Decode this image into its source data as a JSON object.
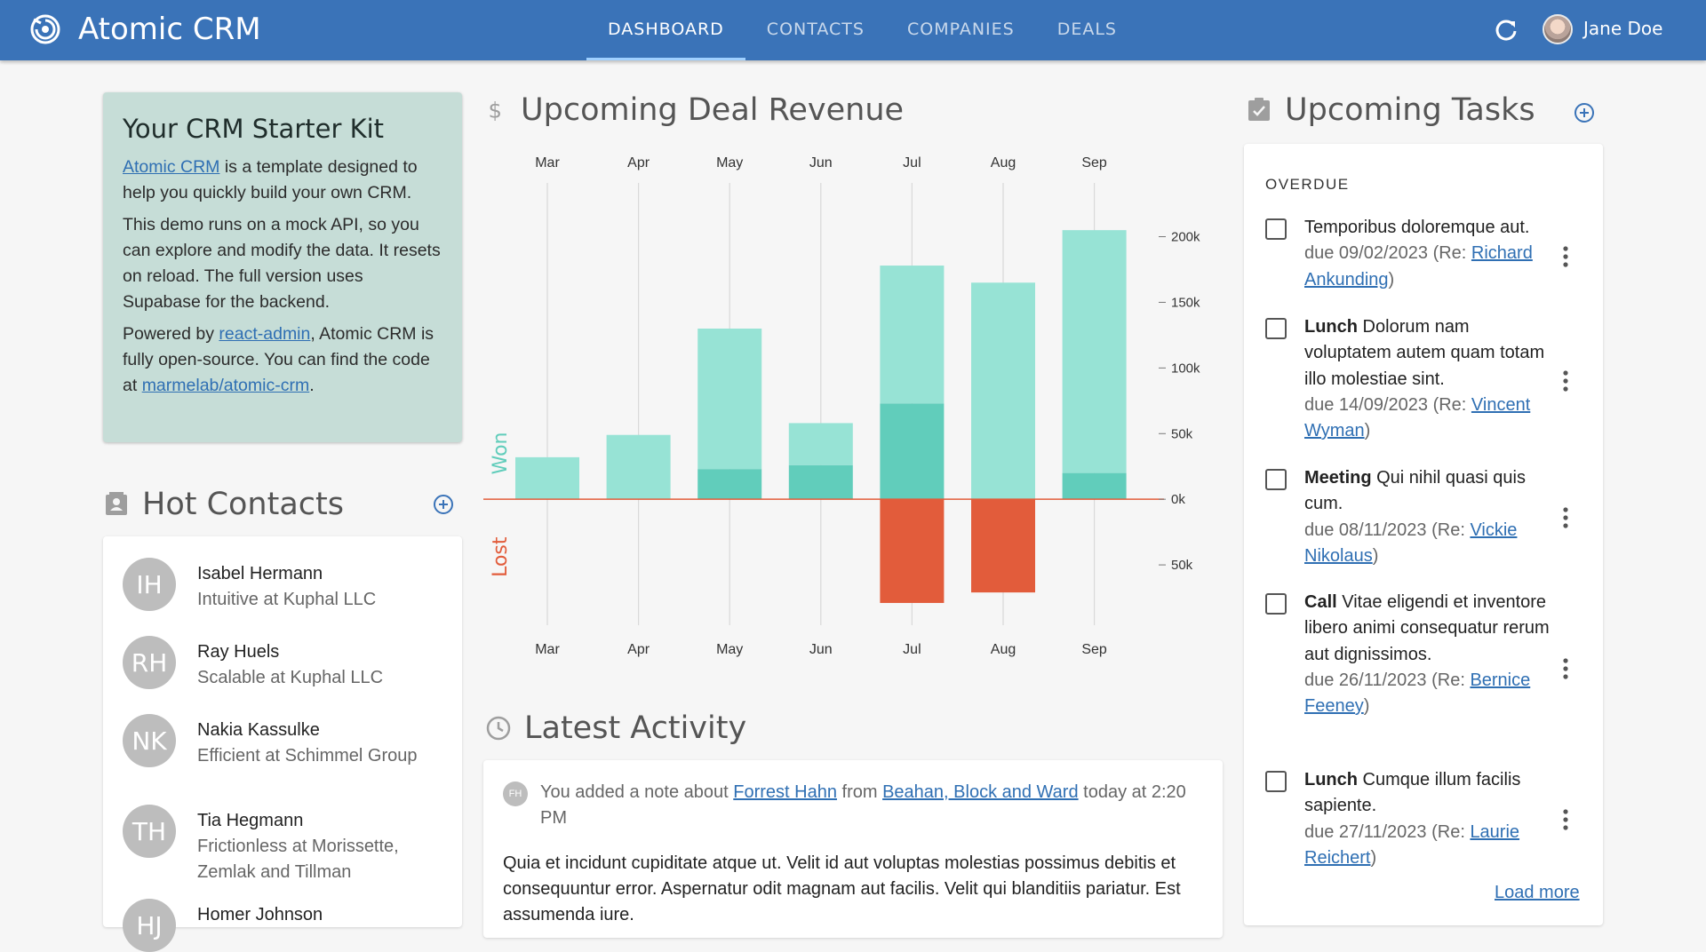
{
  "header": {
    "app_title": "Atomic CRM",
    "tabs": [
      {
        "label": "DASHBOARD",
        "active": true
      },
      {
        "label": "CONTACTS",
        "active": false
      },
      {
        "label": "COMPANIES",
        "active": false
      },
      {
        "label": "DEALS",
        "active": false
      }
    ],
    "user_name": "Jane Doe",
    "brand_color": "#3a73b8"
  },
  "starter_kit": {
    "title": "Your CRM Starter Kit",
    "p1_link": "Atomic CRM",
    "p1_rest": " is a template designed to help you quickly build your own CRM.",
    "p2": "This demo runs on a mock API, so you can explore and modify the data. It resets on reload. The full version uses Supabase for the backend.",
    "p3_a": "Powered by ",
    "p3_link1": "react-admin",
    "p3_b": ", Atomic CRM is fully open-source. You can find the code at ",
    "p3_link2": "marmelab/atomic-crm",
    "p3_c": "."
  },
  "hot_contacts": {
    "title": "Hot Contacts",
    "items": [
      {
        "initials": "IH",
        "name": "Isabel Hermann",
        "role": "Intuitive at Kuphal LLC"
      },
      {
        "initials": "RH",
        "name": "Ray Huels",
        "role": "Scalable at Kuphal LLC"
      },
      {
        "initials": "NK",
        "name": "Nakia Kassulke",
        "role": "Efficient at Schimmel Group"
      },
      {
        "initials": "TH",
        "name": "Tia Hegmann",
        "role": "Frictionless at Morissette, Zemlak and Tillman"
      },
      {
        "initials": "HJ",
        "name": "Homer Johnson",
        "role": ""
      }
    ]
  },
  "revenue": {
    "title": "Upcoming Deal Revenue"
  },
  "chart_data": {
    "type": "bar",
    "title": "Upcoming Deal Revenue",
    "categories": [
      "Mar",
      "Apr",
      "May",
      "Jun",
      "Jul",
      "Aug",
      "Sep"
    ],
    "series": [
      {
        "name": "Won",
        "values": [
          0,
          0,
          23000,
          26000,
          73000,
          0,
          20000
        ],
        "color": "#61cdbb"
      },
      {
        "name": "Won",
        "values": [
          32000,
          49000,
          107000,
          32000,
          105000,
          165000,
          185000
        ],
        "color": "#97e3d5"
      },
      {
        "name": "Lost",
        "values": [
          0,
          0,
          0,
          0,
          -79000,
          -71000,
          0
        ],
        "color": "#e25c3b"
      }
    ],
    "axis_label_positive": "Won",
    "axis_label_negative": "Lost",
    "y_ticks": [
      {
        "value": 200000,
        "label": "200k"
      },
      {
        "value": 150000,
        "label": "150k"
      },
      {
        "value": 100000,
        "label": "100k"
      },
      {
        "value": 50000,
        "label": "50k"
      },
      {
        "value": 0,
        "label": "0k"
      },
      {
        "value": -50000,
        "label": "50k"
      }
    ],
    "ylim": [
      -100000,
      245000
    ],
    "grid": "vertical"
  },
  "activity": {
    "title": "Latest Activity",
    "avatar_initials": "FH",
    "line_a": "You added a note about ",
    "contact_link": "Forrest Hahn",
    "line_b": " from ",
    "company_link": "Beahan, Block and Ward",
    "line_c": " today at 2:20 PM",
    "body": "Quia et incidunt cupiditate atque ut. Velit id aut voluptas molestias possimus debitis et consequuntur error. Aspernatur odit magnam aut facilis. Velit qui blanditiis pariatur. Est assumenda iure."
  },
  "tasks": {
    "title": "Upcoming Tasks",
    "overdue_label": "OVERDUE",
    "items": [
      {
        "type": "",
        "text": "Temporibus doloremque aut.",
        "due": "due 09/02/2023 (Re: ",
        "contact": "Richard Ankunding",
        "close": ")"
      },
      {
        "type": "Lunch",
        "text": " Dolorum nam voluptatem autem quam totam illo molestiae sint.",
        "due": "due 14/09/2023 (Re: ",
        "contact": "Vincent Wyman",
        "close": ")"
      },
      {
        "type": "Meeting",
        "text": " Qui nihil quasi quis cum.",
        "due": "due 08/11/2023 (Re: ",
        "contact": "Vickie Nikolaus",
        "close": ")"
      },
      {
        "type": "Call",
        "text": " Vitae eligendi et inventore libero animi consequatur rerum aut dignissimos.",
        "due": "due 26/11/2023 (Re: ",
        "contact": "Bernice Feeney",
        "close": ")"
      },
      {
        "type": "Lunch",
        "text": " Cumque illum facilis sapiente.",
        "due": "due 27/11/2023 (Re: ",
        "contact": "Laurie Reichert",
        "close": ")"
      }
    ],
    "load_more": "Load more"
  }
}
